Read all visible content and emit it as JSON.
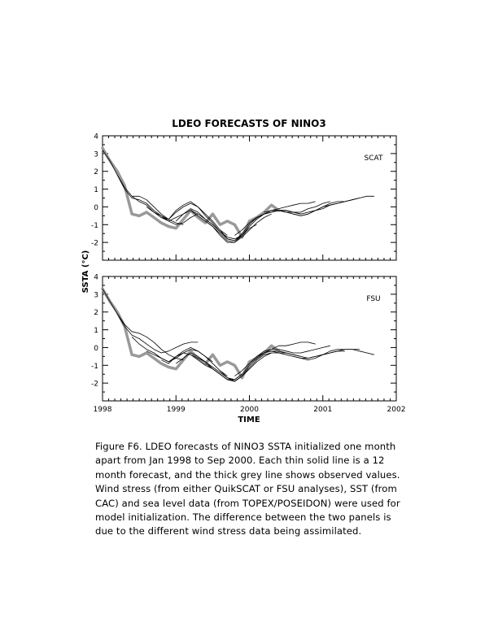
{
  "chart_data": {
    "type": "line",
    "title": "LDEO FORECASTS OF NINO3",
    "ylabel": "SSTA (°C)",
    "xlabel": "TIME",
    "xlim": [
      1998,
      2002
    ],
    "x_ticks": [
      "1998",
      "1999",
      "2000",
      "2001",
      "2002"
    ],
    "ylim": [
      -3,
      4
    ],
    "y_ticks": [
      "4",
      "3",
      "2",
      "1",
      "0",
      "-1",
      "-2"
    ],
    "panels": [
      {
        "label": "SCAT",
        "observed": {
          "x": [
            1998.0,
            1998.1,
            1998.2,
            1998.3,
            1998.4,
            1998.5,
            1998.6,
            1998.7,
            1998.8,
            1998.9,
            1999.0,
            1999.1,
            1999.2,
            1999.3,
            1999.4,
            1999.5,
            1999.6,
            1999.7,
            1999.8,
            1999.9,
            2000.0,
            2000.1,
            2000.2,
            2000.3,
            2000.4
          ],
          "y": [
            3.3,
            2.6,
            2.0,
            1.2,
            -0.4,
            -0.5,
            -0.3,
            -0.6,
            -0.9,
            -1.1,
            -1.2,
            -0.7,
            -0.2,
            -0.6,
            -0.9,
            -0.4,
            -1.0,
            -0.8,
            -1.0,
            -1.7,
            -0.8,
            -0.6,
            -0.3,
            0.1,
            -0.2
          ]
        },
        "forecasts": [
          {
            "x": [
              1998.0,
              1998.1,
              1998.2,
              1998.3,
              1998.4,
              1998.5,
              1998.6,
              1998.7,
              1998.8,
              1998.9,
              1999.0,
              1999.1
            ],
            "y": [
              3.2,
              2.6,
              1.8,
              1.1,
              0.6,
              0.6,
              0.4,
              0.0,
              -0.4,
              -0.7,
              -0.9,
              -1.0
            ]
          },
          {
            "x": [
              1998.2,
              1998.3,
              1998.4,
              1998.5,
              1998.6,
              1998.7,
              1998.8,
              1998.9,
              1999.0,
              1999.1,
              1999.2,
              1999.3
            ],
            "y": [
              1.8,
              1.0,
              0.5,
              0.4,
              0.2,
              -0.2,
              -0.5,
              -0.8,
              -1.0,
              -0.9,
              -0.6,
              -0.4
            ]
          },
          {
            "x": [
              1998.4,
              1998.5,
              1998.6,
              1998.7,
              1998.8,
              1998.9,
              1999.0,
              1999.1,
              1999.2,
              1999.3,
              1999.4,
              1999.5
            ],
            "y": [
              0.6,
              0.3,
              0.1,
              -0.3,
              -0.6,
              -0.8,
              -0.6,
              -0.4,
              -0.2,
              -0.4,
              -0.7,
              -1.0
            ]
          },
          {
            "x": [
              1998.6,
              1998.7,
              1998.8,
              1998.9,
              1999.0,
              1999.1,
              1999.2,
              1999.3,
              1999.4,
              1999.5,
              1999.6,
              1999.7
            ],
            "y": [
              0.0,
              -0.3,
              -0.5,
              -0.7,
              -0.3,
              0.0,
              0.2,
              0.0,
              -0.4,
              -0.8,
              -1.3,
              -1.6
            ]
          },
          {
            "x": [
              1998.8,
              1998.9,
              1999.0,
              1999.1,
              1999.2,
              1999.3,
              1999.4,
              1999.5,
              1999.6,
              1999.7,
              1999.8,
              1999.9
            ],
            "y": [
              -0.6,
              -0.7,
              -0.2,
              0.1,
              0.3,
              0.0,
              -0.5,
              -0.9,
              -1.4,
              -1.7,
              -1.8,
              -1.6
            ]
          },
          {
            "x": [
              1999.0,
              1999.1,
              1999.2,
              1999.3,
              1999.4,
              1999.5,
              1999.6,
              1999.7,
              1999.8,
              1999.9,
              2000.0,
              2000.1
            ],
            "y": [
              -0.8,
              -0.4,
              -0.1,
              -0.3,
              -0.7,
              -1.0,
              -1.4,
              -1.8,
              -1.9,
              -1.6,
              -1.2,
              -1.0
            ]
          },
          {
            "x": [
              1999.2,
              1999.3,
              1999.4,
              1999.5,
              1999.6,
              1999.7,
              1999.8,
              1999.9,
              2000.0,
              2000.1,
              2000.2,
              2000.3
            ],
            "y": [
              -0.2,
              -0.5,
              -0.8,
              -1.1,
              -1.5,
              -1.9,
              -2.0,
              -1.7,
              -1.3,
              -0.9,
              -0.6,
              -0.4
            ]
          },
          {
            "x": [
              1999.4,
              1999.5,
              1999.6,
              1999.7,
              1999.8,
              1999.9,
              2000.0,
              2000.1,
              2000.2,
              2000.3,
              2000.4,
              2000.5
            ],
            "y": [
              -0.8,
              -1.1,
              -1.6,
              -2.0,
              -2.0,
              -1.6,
              -1.1,
              -0.7,
              -0.4,
              -0.3,
              -0.2,
              -0.2
            ]
          },
          {
            "x": [
              1999.6,
              1999.7,
              1999.8,
              1999.9,
              2000.0,
              2000.1,
              2000.2,
              2000.3,
              2000.4,
              2000.5,
              2000.6,
              2000.7
            ],
            "y": [
              -1.3,
              -1.8,
              -1.9,
              -1.5,
              -1.0,
              -0.6,
              -0.4,
              -0.3,
              -0.2,
              -0.2,
              -0.3,
              -0.4
            ]
          },
          {
            "x": [
              1999.8,
              1999.9,
              2000.0,
              2000.1,
              2000.2,
              2000.3,
              2000.4,
              2000.5,
              2000.6,
              2000.7,
              2000.8,
              2000.9
            ],
            "y": [
              -1.6,
              -1.3,
              -0.9,
              -0.6,
              -0.4,
              -0.2,
              -0.1,
              0.0,
              0.1,
              0.2,
              0.2,
              0.3
            ]
          },
          {
            "x": [
              2000.0,
              2000.1,
              2000.2,
              2000.3,
              2000.4,
              2000.5,
              2000.6,
              2000.7,
              2000.8,
              2000.9,
              2001.0,
              2001.1
            ],
            "y": [
              -0.9,
              -0.6,
              -0.4,
              -0.2,
              -0.2,
              -0.2,
              -0.3,
              -0.3,
              -0.1,
              0.0,
              0.2,
              0.3
            ]
          },
          {
            "x": [
              2000.2,
              2000.3,
              2000.4,
              2000.5,
              2000.6,
              2000.7,
              2000.8,
              2000.9,
              2001.0,
              2001.1,
              2001.2,
              2001.3
            ],
            "y": [
              -0.3,
              -0.2,
              -0.2,
              -0.3,
              -0.3,
              -0.4,
              -0.3,
              -0.2,
              0.0,
              0.2,
              0.3,
              0.3
            ]
          },
          {
            "x": [
              2000.4,
              2000.5,
              2000.6,
              2000.7,
              2000.8,
              2000.9,
              2001.0,
              2001.1,
              2001.2,
              2001.3,
              2001.4,
              2001.5
            ],
            "y": [
              -0.2,
              -0.3,
              -0.4,
              -0.5,
              -0.4,
              -0.2,
              0.0,
              0.1,
              0.2,
              0.3,
              0.4,
              0.5
            ]
          },
          {
            "x": [
              2000.6,
              2000.7,
              2000.8,
              2000.9,
              2001.0,
              2001.1,
              2001.2,
              2001.3,
              2001.4,
              2001.5,
              2001.6,
              2001.7
            ],
            "y": [
              -0.4,
              -0.5,
              -0.4,
              -0.2,
              -0.1,
              0.1,
              0.2,
              0.3,
              0.4,
              0.5,
              0.6,
              0.6
            ]
          }
        ]
      },
      {
        "label": "FSU",
        "observed": {
          "x": [
            1998.0,
            1998.1,
            1998.2,
            1998.3,
            1998.4,
            1998.5,
            1998.6,
            1998.7,
            1998.8,
            1998.9,
            1999.0,
            1999.1,
            1999.2,
            1999.3,
            1999.4,
            1999.5,
            1999.6,
            1999.7,
            1999.8,
            1999.9,
            2000.0,
            2000.1,
            2000.2,
            2000.3,
            2000.4
          ],
          "y": [
            3.3,
            2.6,
            2.0,
            1.2,
            -0.4,
            -0.5,
            -0.3,
            -0.6,
            -0.9,
            -1.1,
            -1.2,
            -0.7,
            -0.2,
            -0.6,
            -0.9,
            -0.4,
            -1.0,
            -0.8,
            -1.0,
            -1.7,
            -0.8,
            -0.6,
            -0.3,
            0.1,
            -0.2
          ]
        },
        "forecasts": [
          {
            "x": [
              1998.0,
              1998.1,
              1998.2,
              1998.3,
              1998.4,
              1998.5,
              1998.6,
              1998.7,
              1998.8,
              1998.9,
              1999.0,
              1999.1
            ],
            "y": [
              3.3,
              2.6,
              1.9,
              1.3,
              0.9,
              0.8,
              0.6,
              0.3,
              -0.1,
              -0.4,
              -0.6,
              -0.7
            ]
          },
          {
            "x": [
              1998.2,
              1998.3,
              1998.4,
              1998.5,
              1998.6,
              1998.7,
              1998.8,
              1998.9,
              1999.0,
              1999.1,
              1999.2,
              1999.3
            ],
            "y": [
              1.9,
              1.2,
              0.7,
              0.5,
              0.2,
              -0.1,
              -0.3,
              -0.2,
              0.0,
              0.2,
              0.3,
              0.3
            ]
          },
          {
            "x": [
              1998.4,
              1998.5,
              1998.6,
              1998.7,
              1998.8,
              1998.9,
              1999.0,
              1999.1,
              1999.2,
              1999.3,
              1999.4,
              1999.5
            ],
            "y": [
              0.6,
              0.2,
              -0.1,
              -0.3,
              -0.6,
              -0.8,
              -0.6,
              -0.3,
              -0.1,
              -0.2,
              -0.5,
              -0.8
            ]
          },
          {
            "x": [
              1998.6,
              1998.7,
              1998.8,
              1998.9,
              1999.0,
              1999.1,
              1999.2,
              1999.3,
              1999.4,
              1999.5,
              1999.6,
              1999.7
            ],
            "y": [
              -0.2,
              -0.4,
              -0.6,
              -0.8,
              -0.5,
              -0.2,
              0.0,
              -0.2,
              -0.5,
              -0.9,
              -1.3,
              -1.6
            ]
          },
          {
            "x": [
              1998.8,
              1998.9,
              1999.0,
              1999.1,
              1999.2,
              1999.3,
              1999.4,
              1999.5,
              1999.6,
              1999.7,
              1999.8,
              1999.9
            ],
            "y": [
              -0.7,
              -0.9,
              -0.5,
              -0.3,
              -0.4,
              -0.6,
              -0.8,
              -1.2,
              -1.5,
              -1.8,
              -1.8,
              -1.5
            ]
          },
          {
            "x": [
              1999.0,
              1999.1,
              1999.2,
              1999.3,
              1999.4,
              1999.5,
              1999.6,
              1999.7,
              1999.8,
              1999.9,
              2000.0,
              2000.1
            ],
            "y": [
              -0.9,
              -0.6,
              -0.3,
              -0.5,
              -0.8,
              -1.1,
              -1.4,
              -1.7,
              -1.9,
              -1.6,
              -1.2,
              -0.8
            ]
          },
          {
            "x": [
              1999.2,
              1999.3,
              1999.4,
              1999.5,
              1999.6,
              1999.7,
              1999.8,
              1999.9,
              2000.0,
              2000.1,
              2000.2,
              2000.3
            ],
            "y": [
              -0.4,
              -0.7,
              -1.0,
              -1.2,
              -1.5,
              -1.8,
              -1.9,
              -1.6,
              -1.2,
              -0.8,
              -0.5,
              -0.3
            ]
          },
          {
            "x": [
              1999.4,
              1999.5,
              1999.6,
              1999.7,
              1999.8,
              1999.9,
              2000.0,
              2000.1,
              2000.2,
              2000.3,
              2000.4,
              2000.5
            ],
            "y": [
              -0.9,
              -1.2,
              -1.5,
              -1.8,
              -1.9,
              -1.6,
              -1.1,
              -0.7,
              -0.4,
              -0.3,
              -0.3,
              -0.3
            ]
          },
          {
            "x": [
              1999.6,
              1999.7,
              1999.8,
              1999.9,
              2000.0,
              2000.1,
              2000.2,
              2000.3,
              2000.4,
              2000.5,
              2000.6,
              2000.7
            ],
            "y": [
              -1.3,
              -1.7,
              -1.8,
              -1.5,
              -1.0,
              -0.6,
              -0.3,
              -0.2,
              -0.2,
              -0.3,
              -0.4,
              -0.5
            ]
          },
          {
            "x": [
              1999.8,
              1999.9,
              2000.0,
              2000.1,
              2000.2,
              2000.3,
              2000.4,
              2000.5,
              2000.6,
              2000.7,
              2000.8,
              2000.9
            ],
            "y": [
              -1.6,
              -1.3,
              -0.9,
              -0.5,
              -0.3,
              -0.1,
              0.1,
              0.1,
              0.2,
              0.3,
              0.3,
              0.2
            ]
          },
          {
            "x": [
              2000.0,
              2000.1,
              2000.2,
              2000.3,
              2000.4,
              2000.5,
              2000.6,
              2000.7,
              2000.8,
              2000.9,
              2001.0,
              2001.1
            ],
            "y": [
              -0.9,
              -0.5,
              -0.2,
              -0.1,
              -0.1,
              -0.2,
              -0.3,
              -0.3,
              -0.2,
              -0.1,
              0.0,
              0.1
            ]
          },
          {
            "x": [
              2000.2,
              2000.3,
              2000.4,
              2000.5,
              2000.6,
              2000.7,
              2000.8,
              2000.9,
              2001.0,
              2001.1,
              2001.2,
              2001.3
            ],
            "y": [
              -0.3,
              -0.2,
              -0.3,
              -0.4,
              -0.5,
              -0.6,
              -0.7,
              -0.6,
              -0.4,
              -0.3,
              -0.2,
              -0.2
            ]
          },
          {
            "x": [
              2000.4,
              2000.5,
              2000.6,
              2000.7,
              2000.8,
              2000.9,
              2001.0,
              2001.1,
              2001.2,
              2001.3,
              2001.4,
              2001.5
            ],
            "y": [
              -0.2,
              -0.3,
              -0.4,
              -0.5,
              -0.6,
              -0.5,
              -0.4,
              -0.3,
              -0.2,
              -0.1,
              -0.1,
              -0.1
            ]
          },
          {
            "x": [
              2000.6,
              2000.7,
              2000.8,
              2000.9,
              2001.0,
              2001.1,
              2001.2,
              2001.3,
              2001.4,
              2001.5,
              2001.6,
              2001.7
            ],
            "y": [
              -0.5,
              -0.6,
              -0.6,
              -0.5,
              -0.4,
              -0.2,
              -0.1,
              -0.1,
              -0.1,
              -0.2,
              -0.3,
              -0.4
            ]
          }
        ]
      }
    ],
    "colors": {
      "observed": "#999999",
      "forecast": "#000000"
    }
  },
  "caption": [
    "Figure F6.  LDEO forecasts of NINO3 SSTA initialized one month",
    "apart from Jan 1998 to Sep 2000.  Each thin solid line is a 12",
    "month forecast,  and the thick grey line shows observed values.",
    "Wind stress (from either QuikSCAT or FSU analyses), SST (from",
    "CAC) and sea level data (from TOPEX/POSEIDON) were used for",
    "model initialization.  The difference between the two panels is",
    "due to the different wind stress data being assimilated."
  ]
}
